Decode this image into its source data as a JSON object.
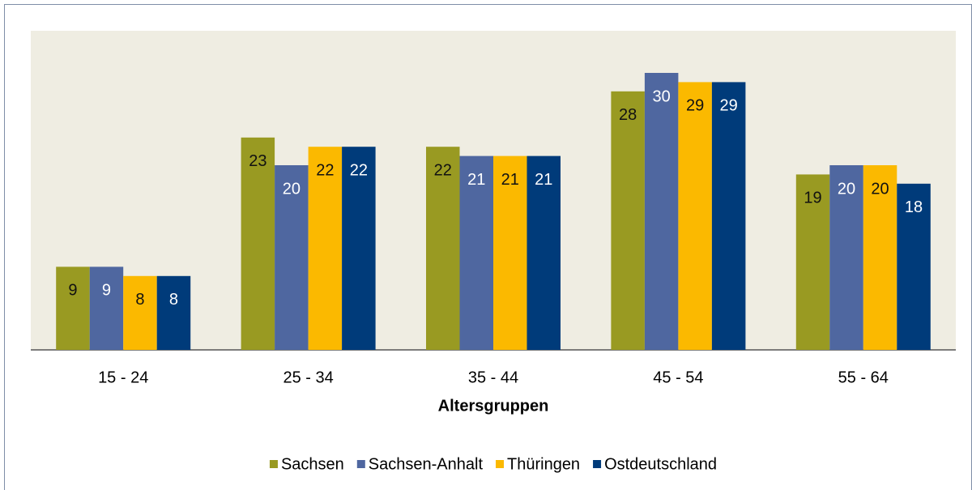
{
  "chart_data": {
    "type": "bar",
    "x_label": "Altersgruppen",
    "categories": [
      "15 - 24",
      "25 - 34",
      "35 - 44",
      "45 - 54",
      "55 - 64"
    ],
    "series": [
      {
        "name": "Sachsen",
        "color": "#999a22",
        "label_color": "#111111",
        "values": [
          9,
          23,
          22,
          28,
          19
        ]
      },
      {
        "name": "Sachsen-Anhalt",
        "color": "#4f67a0",
        "label_color": "#ffffff",
        "values": [
          9,
          20,
          21,
          30,
          20
        ]
      },
      {
        "name": "Thüringen",
        "color": "#fbb900",
        "label_color": "#111111",
        "values": [
          8,
          22,
          21,
          29,
          20
        ]
      },
      {
        "name": "Ostdeutschland",
        "color": "#003b7a",
        "label_color": "#ffffff",
        "values": [
          8,
          22,
          21,
          29,
          18
        ]
      }
    ],
    "grid": false,
    "legend": "bottom"
  }
}
